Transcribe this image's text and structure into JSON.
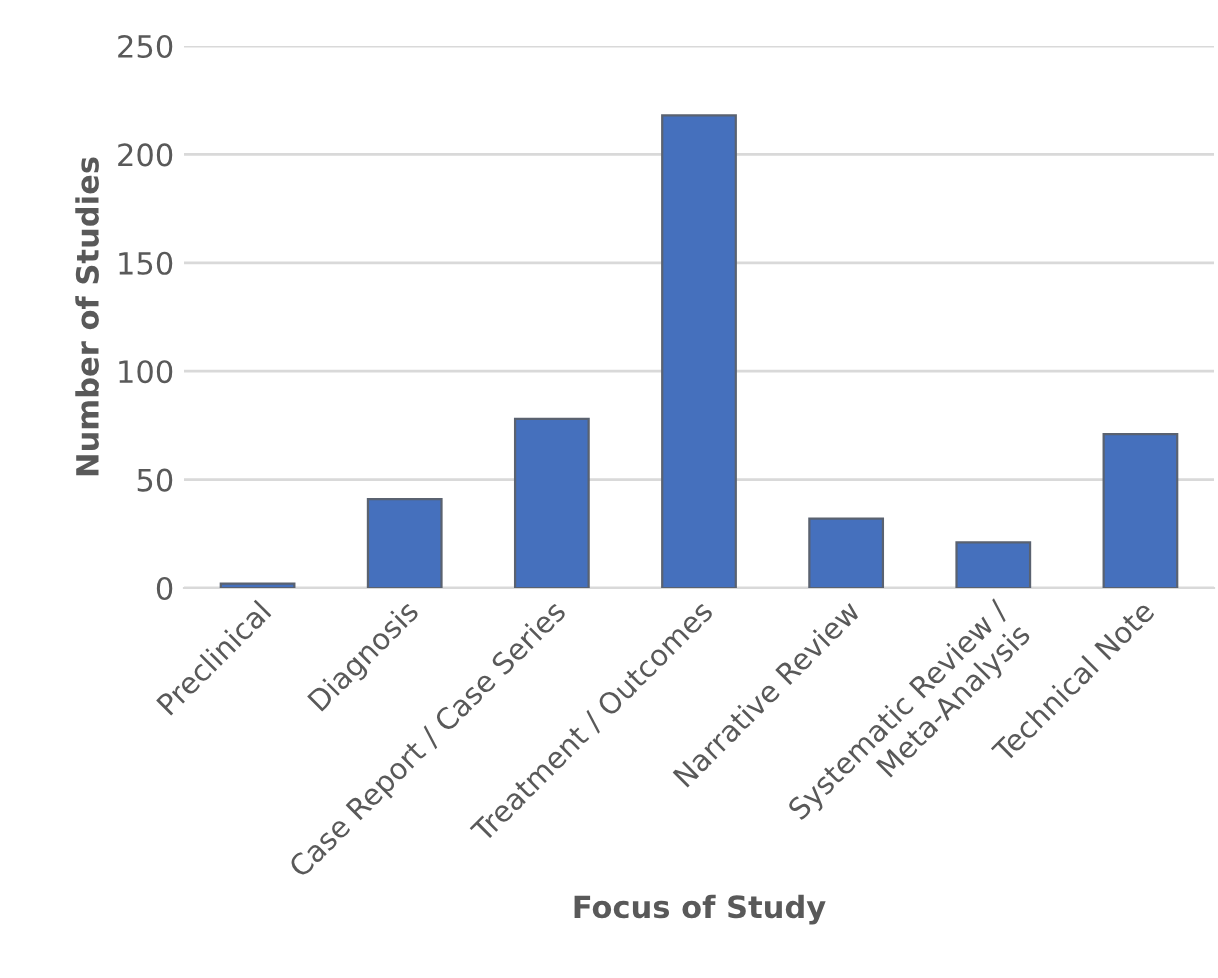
{
  "chart_data": {
    "type": "bar",
    "xlabel": "Focus of Study",
    "ylabel": "Number of Studies",
    "categories": [
      "Preclinical",
      "Diagnosis",
      "Case Report / Case Series",
      "Treatment / Outcomes",
      "Narrative Review",
      "Systematic Review /\nMeta-Analysis",
      "Technical Note"
    ],
    "values": [
      2,
      41,
      78,
      218,
      32,
      21,
      71
    ],
    "color": "#4570bd",
    "ylim": [
      0,
      250
    ],
    "yticks": [
      0,
      50,
      100,
      150,
      200,
      250
    ],
    "grid": "y"
  }
}
